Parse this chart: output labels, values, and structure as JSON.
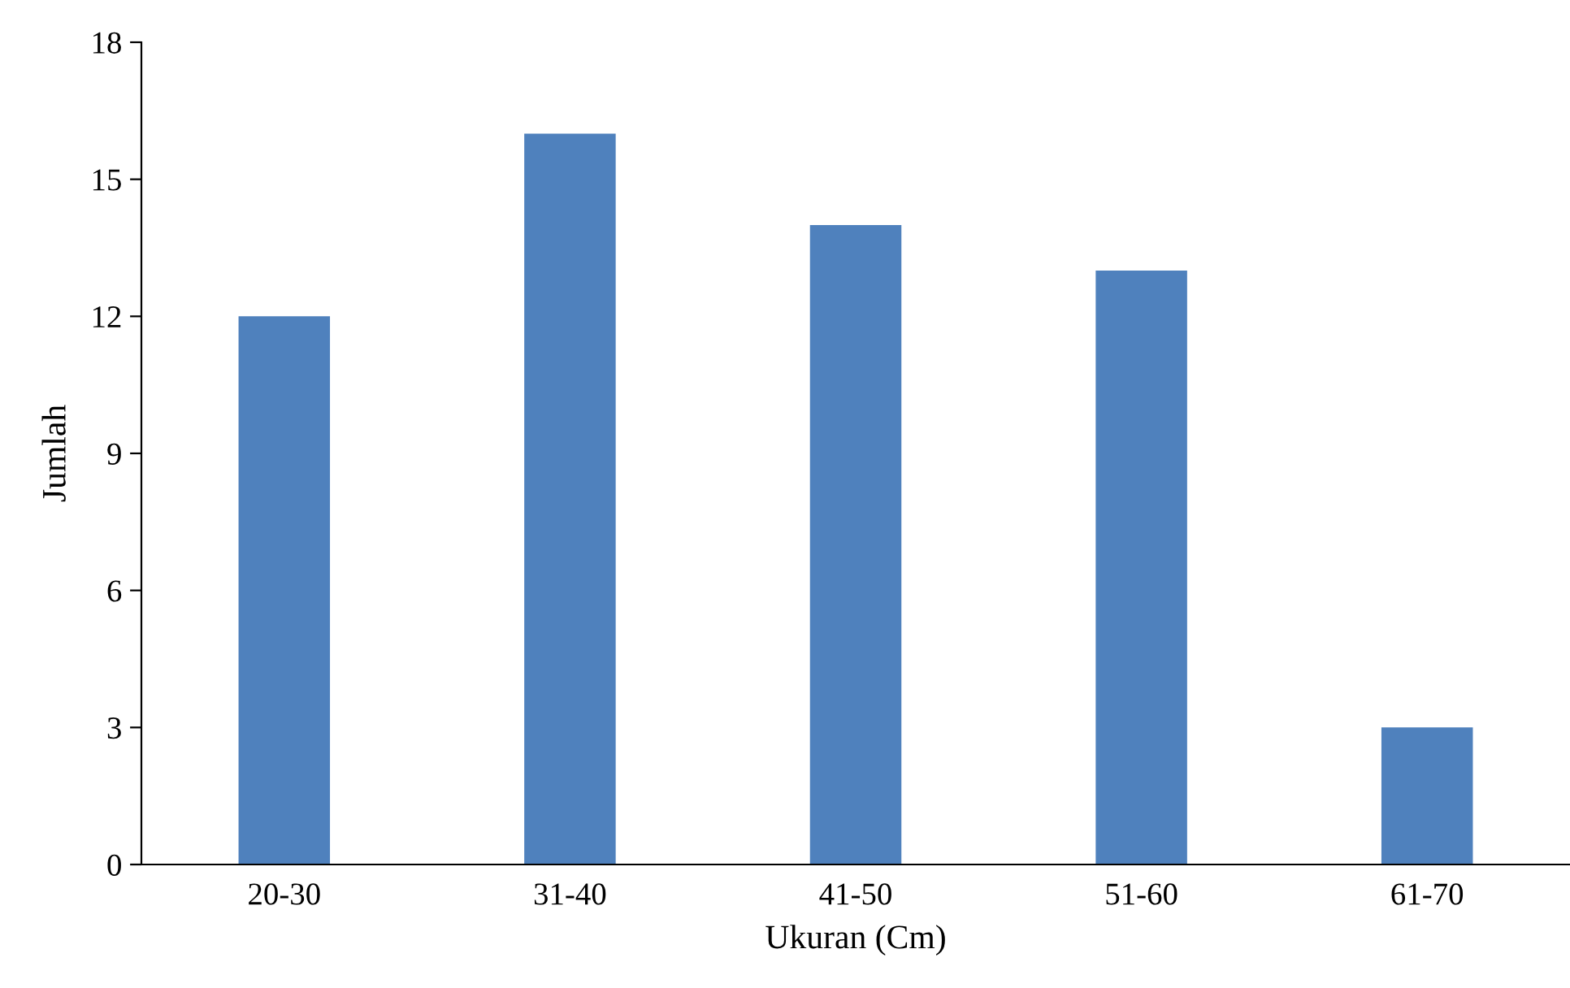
{
  "chart_data": {
    "type": "bar",
    "xlabel": "Ukuran (Cm)",
    "ylabel": "Jumlah",
    "categories": [
      "20-30",
      "31-40",
      "41-50",
      "51-60",
      "61-70"
    ],
    "values": [
      12,
      16,
      14,
      13,
      3
    ],
    "color": "#4f81bd",
    "ylim": [
      0,
      18
    ],
    "yticks": [
      0,
      3,
      6,
      9,
      12,
      15,
      18
    ],
    "grid": false,
    "legend": false
  }
}
